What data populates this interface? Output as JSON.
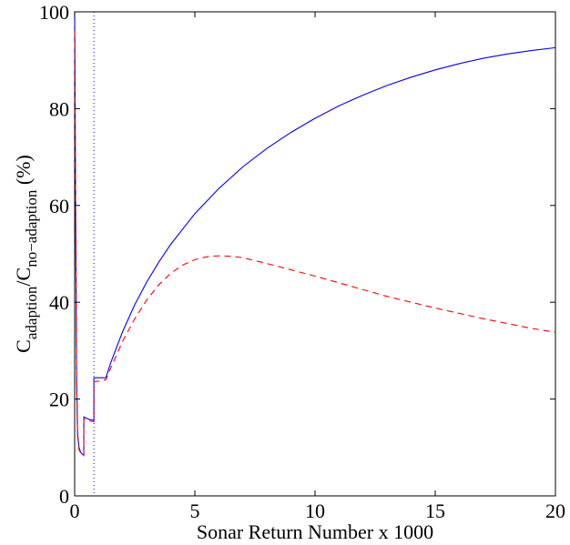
{
  "chart_data": {
    "type": "line",
    "title": "",
    "xlabel": "Sonar Return Number x 1000",
    "ylabel": {
      "main1": "C",
      "sub1": "adaption",
      "slash": "/C",
      "sub2": "no−adaption",
      "unit": " (%)"
    },
    "xlim": [
      0,
      20
    ],
    "ylim": [
      0,
      100
    ],
    "xticks": [
      0,
      5,
      10,
      15,
      20
    ],
    "yticks": [
      0,
      20,
      40,
      60,
      80,
      100
    ],
    "grid": false,
    "legend": "none",
    "vline": {
      "x": 0.8,
      "color": "#0000ff",
      "style": "dotted"
    },
    "series": [
      {
        "color": "#0000ff",
        "style": "solid",
        "points": [
          [
            0.0,
            100
          ],
          [
            0.04,
            60
          ],
          [
            0.08,
            25
          ],
          [
            0.12,
            13
          ],
          [
            0.18,
            10
          ],
          [
            0.25,
            9.0
          ],
          [
            0.32,
            8.6
          ],
          [
            0.38,
            8.5
          ],
          [
            0.38,
            16.3
          ],
          [
            0.6,
            15.8
          ],
          [
            0.8,
            15.6
          ],
          [
            0.8,
            24.4
          ],
          [
            1.0,
            24.4
          ],
          [
            1.3,
            24.4
          ],
          [
            1.5,
            27.5
          ],
          [
            2.0,
            34.0
          ],
          [
            2.5,
            39.5
          ],
          [
            3.0,
            44.2
          ],
          [
            3.5,
            48.3
          ],
          [
            4.0,
            52.0
          ],
          [
            5.0,
            58.3
          ],
          [
            6.0,
            63.5
          ],
          [
            7.0,
            68.0
          ],
          [
            8.0,
            71.8
          ],
          [
            9.0,
            75.1
          ],
          [
            10.0,
            78.0
          ],
          [
            11.0,
            80.6
          ],
          [
            12.0,
            82.8
          ],
          [
            13.0,
            84.8
          ],
          [
            14.0,
            86.5
          ],
          [
            15.0,
            88.0
          ],
          [
            16.0,
            89.3
          ],
          [
            17.0,
            90.4
          ],
          [
            18.0,
            91.3
          ],
          [
            19.0,
            92.0
          ],
          [
            20.0,
            92.6
          ]
        ]
      },
      {
        "color": "#ff0000",
        "style": "dashed",
        "points": [
          [
            0.0,
            96
          ],
          [
            0.04,
            58
          ],
          [
            0.08,
            24
          ],
          [
            0.12,
            12.5
          ],
          [
            0.18,
            9.6
          ],
          [
            0.25,
            8.8
          ],
          [
            0.32,
            8.4
          ],
          [
            0.38,
            8.3
          ],
          [
            0.38,
            15.9
          ],
          [
            0.6,
            15.5
          ],
          [
            0.8,
            15.3
          ],
          [
            0.8,
            23.6
          ],
          [
            1.0,
            23.7
          ],
          [
            1.3,
            24.0
          ],
          [
            1.5,
            26.4
          ],
          [
            2.0,
            32.0
          ],
          [
            2.5,
            36.6
          ],
          [
            3.0,
            40.5
          ],
          [
            3.5,
            43.6
          ],
          [
            4.0,
            46.0
          ],
          [
            4.5,
            47.7
          ],
          [
            5.0,
            48.8
          ],
          [
            5.5,
            49.4
          ],
          [
            6.0,
            49.6
          ],
          [
            6.5,
            49.5
          ],
          [
            7.0,
            49.2
          ],
          [
            8.0,
            48.0
          ],
          [
            9.0,
            46.7
          ],
          [
            10.0,
            45.4
          ],
          [
            11.0,
            44.0
          ],
          [
            12.0,
            42.6
          ],
          [
            13.0,
            41.2
          ],
          [
            14.0,
            40.0
          ],
          [
            15.0,
            38.8
          ],
          [
            16.0,
            37.7
          ],
          [
            17.0,
            36.6
          ],
          [
            18.0,
            35.6
          ],
          [
            19.0,
            34.6
          ],
          [
            20.0,
            33.8
          ]
        ]
      }
    ]
  }
}
